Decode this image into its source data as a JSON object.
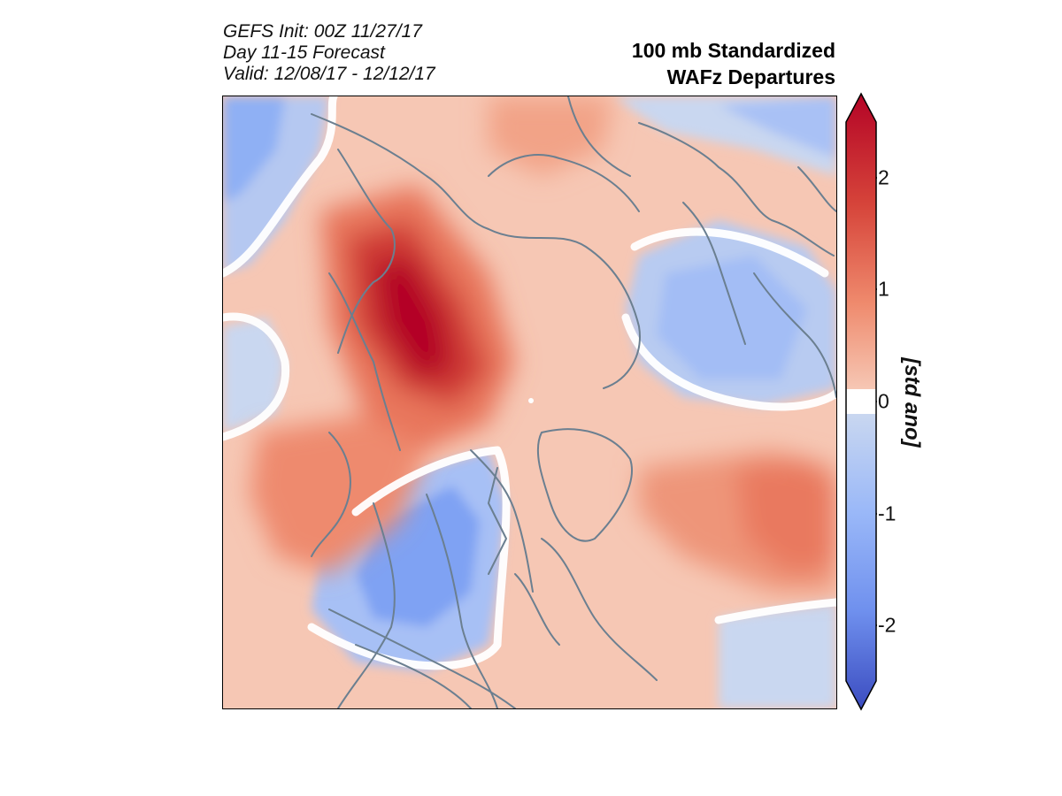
{
  "header": {
    "meta_lines": [
      "GEFS Init: 00Z 11/27/17",
      "Day 11-15 Forecast",
      "Valid: 12/08/17 - 12/12/17"
    ],
    "title_lines": [
      "100 mb Standardized",
      "WAFz Departures"
    ]
  },
  "colorbar": {
    "ticks": [
      "2",
      "1",
      "0",
      "-1",
      "-2"
    ],
    "unit_label": "[std ano]",
    "range": [
      -2.5,
      2.5
    ],
    "colors": {
      "max": "#b40426",
      "high": "#e7745b",
      "low_pos": "#f6c7b4",
      "zero": "#ffffff",
      "low_neg": "#c9d7f0",
      "low": "#7b9ff9",
      "min": "#3b4cc0"
    }
  },
  "map": {
    "projection": "north-polar-stereographic",
    "coastline_color": "#6b7f90",
    "region_labels": []
  }
}
